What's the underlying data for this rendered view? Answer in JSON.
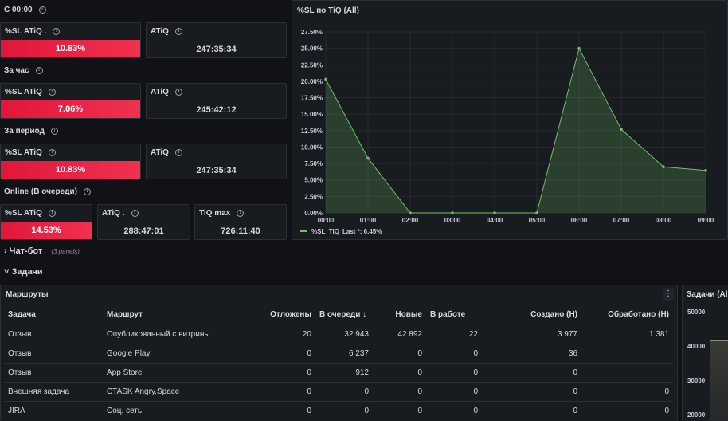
{
  "groups": [
    {
      "label": "С 00:00"
    },
    {
      "label": "За час"
    },
    {
      "label": "За период"
    },
    {
      "label": "Online (В очереди)"
    }
  ],
  "stats": {
    "g1": {
      "sl_title": "%SL ATiQ .",
      "sl_value": "10.83%",
      "atiq_title": "ATiQ",
      "atiq_value": "247:35:34"
    },
    "g2": {
      "sl_title": "%SL ATiQ",
      "sl_value": "7.06%",
      "atiq_title": "ATiQ",
      "atiq_value": "245:42:12"
    },
    "g3": {
      "sl_title": "%SL ATiQ",
      "sl_value": "10.83%",
      "atiq_title": "ATiQ",
      "atiq_value": "247:35:34"
    },
    "g4": {
      "sl_title": "%SL ATiQ",
      "sl_value": "14.53%",
      "atiq_title": "ATiQ .",
      "atiq_value": "288:47:01",
      "tiq_title": "TiQ max",
      "tiq_value": "726:11:40"
    }
  },
  "chart_panel_title": "%SL по TiQ (All)",
  "chart_data": {
    "type": "area",
    "x": [
      "00:00",
      "01:00",
      "02:00",
      "03:00",
      "04:00",
      "05:00",
      "06:00",
      "07:00",
      "08:00",
      "09:00"
    ],
    "y_ticks": [
      "0.00%",
      "2.50%",
      "5.00%",
      "7.50%",
      "10.00%",
      "12.50%",
      "15.00%",
      "17.50%",
      "20.00%",
      "22.50%",
      "25.00%",
      "27.50%"
    ],
    "ylim": [
      0,
      27.5
    ],
    "series": [
      {
        "name": "%SL_TiQ",
        "values": [
          20.3,
          8.3,
          0,
          0,
          0,
          0,
          25.0,
          12.7,
          7.0,
          6.45
        ],
        "color": "#73bf69"
      }
    ],
    "legend": {
      "name": "%SL_TiQ",
      "stat": "Last *: 6.45%"
    }
  },
  "rows": {
    "chatbot": {
      "label": "Чат-бот",
      "sub": "(3 panels)",
      "collapsed": true
    },
    "tasks": {
      "label": "Задачи",
      "collapsed": false
    }
  },
  "routes_panel": {
    "title": "Маршруты",
    "headers": [
      "Задача",
      "Маршрут",
      "Отложены",
      "В очереди ↓",
      "Новые",
      "В работе",
      "Создано (Н)",
      "Обработано (Н)"
    ],
    "rows": [
      [
        "Отзыв",
        "Опубликованный с витрины",
        "20",
        "32 943",
        "42 892",
        "22",
        "3 977",
        "1 381"
      ],
      [
        "Отзыв",
        "Google Play",
        "0",
        "6 237",
        "0",
        "0",
        "36",
        ""
      ],
      [
        "Отзыв",
        "App Store",
        "0",
        "912",
        "0",
        "0",
        "0",
        ""
      ],
      [
        "Внешняя задача",
        "CTASK Angry.Space",
        "0",
        "0",
        "0",
        "0",
        "0",
        "0"
      ],
      [
        "JIRA",
        "Соц. сеть",
        "0",
        "0",
        "0",
        "0",
        "0",
        "0"
      ]
    ]
  },
  "tasks_panel": {
    "title": "Задачи (All)",
    "y_ticks": [
      "50000",
      "40000",
      "30000",
      "20000"
    ]
  },
  "colors": {
    "accent_red": "#f2294a",
    "series_green": "#73bf69",
    "bg": "#111217",
    "panel": "#181b1f"
  }
}
